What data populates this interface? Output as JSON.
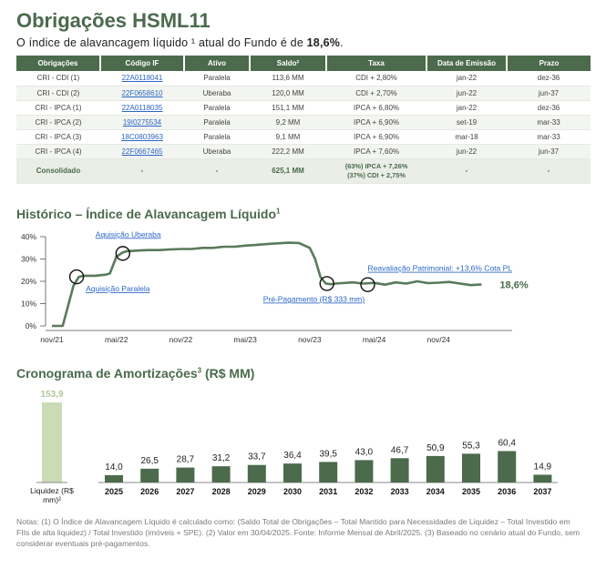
{
  "title": "Obrigações HSML11",
  "subtitle": {
    "prefix": "O índice de alavancagem líquido ¹ atual do Fundo é de ",
    "value": "18,6%",
    "suffix": "."
  },
  "bonds_table": {
    "headers": [
      "Obrigações",
      "Código IF",
      "Ativo",
      "Saldo²",
      "Taxa",
      "Data de Emissão",
      "Prazo"
    ],
    "rows": [
      [
        "CRI - CDI (1)",
        "22A0118041",
        "Paralela",
        "113,6 MM",
        "CDI + 2,80%",
        "jan-22",
        "dez-36"
      ],
      [
        "CRI - CDI (2)",
        "22F0658610",
        "Uberaba",
        "120,0 MM",
        "CDI + 2,70%",
        "jun-22",
        "jun-37"
      ],
      [
        "CRI - IPCA (1)",
        "22A0118035",
        "Paralela",
        "151,1 MM",
        "IPCA + 6,80%",
        "jan-22",
        "dez-36"
      ],
      [
        "CRI - IPCA (2)",
        "19I0275534",
        "Paralela",
        "9,2 MM",
        "IPCA + 6,90%",
        "set-19",
        "mar-33"
      ],
      [
        "CRI - IPCA (3)",
        "18C0803963",
        "Paralela",
        "9,1 MM",
        "IPCA + 6,90%",
        "mar-18",
        "mar-33"
      ],
      [
        "CRI - IPCA (4)",
        "22F0667465",
        "Uberaba",
        "222,2 MM",
        "IPCA + 7,60%",
        "jun-22",
        "jun-37"
      ]
    ],
    "consolidated": {
      "label": "Consolidado",
      "codigo": "-",
      "ativo": "-",
      "saldo": "625,1 MM",
      "taxa_line1": "(63%) IPCA + 7,26%",
      "taxa_line2": "(37%) CDI + 2,75%",
      "emissao": "-",
      "prazo": "-"
    }
  },
  "history_section": {
    "title": "Histórico – Índice de Alavancagem Líquido",
    "title_sup": "1"
  },
  "amort_section": {
    "title": "Cronograma de Amortizações",
    "title_sup": "3",
    "title_suffix": " (R$ MM)"
  },
  "notes": "Notas: (1) O Índice de Alavancagem Líquido é calculado como: (Saldo Total de Obrigações – Total Mantido para Necessidades de Liquidez – Total Investido em FIIs de alta liquidez) / Total Investido (imóveis + SPE). (2) Valor em 30/04/2025. Fonte: Informe Mensal de Abril/2025. (3) Baseado no cenário atual do Fundo, sem considerar eventuais pré-pagamentos.",
  "chart_data": [
    {
      "type": "line",
      "title": "Histórico – Índice de Alavancagem Líquido",
      "x_ticks": [
        "nov/21",
        "mai/22",
        "nov/22",
        "mai/23",
        "nov/23",
        "mai/24",
        "nov/24"
      ],
      "y_ticks": [
        "40%",
        "30%",
        "20%",
        "10%",
        "0%"
      ],
      "ylim": [
        0,
        40
      ],
      "x_range_months": [
        0,
        42
      ],
      "series": [
        {
          "x": [
            0,
            1,
            1.5,
            2,
            2.5,
            3,
            4,
            5,
            5.4,
            6,
            6.6,
            7,
            8,
            9,
            10,
            11,
            12,
            13,
            14,
            15,
            16,
            17,
            18,
            19,
            20,
            21,
            22,
            23,
            24,
            24.5,
            25,
            25.5,
            26,
            26.4,
            27,
            28,
            29,
            30,
            31,
            32,
            33,
            34,
            35,
            36,
            37,
            38,
            39,
            40
          ],
          "y": [
            0,
            0,
            9,
            18,
            22,
            22.5,
            22.5,
            23,
            23.5,
            31,
            33,
            33.5,
            33.8,
            34,
            34,
            34.3,
            34.5,
            34.5,
            35,
            35,
            35.5,
            35.5,
            36,
            36.3,
            36.7,
            37,
            37.3,
            37.2,
            35,
            30,
            22,
            19,
            18.7,
            19,
            19.2,
            19.5,
            19,
            19.3,
            18.5,
            19.5,
            19,
            20,
            19.2,
            19.4,
            19.7,
            19,
            18.3,
            18.6
          ]
        }
      ],
      "end_label": "18,6%",
      "annotations": [
        {
          "text": "Aquisição Paralela",
          "x": 2.3,
          "y": 22
        },
        {
          "text": "Aquisição Uberaba",
          "x": 6.6,
          "y": 32.5
        },
        {
          "text": "Pré-Pagamento (R$ 333 mm)",
          "x": 25.6,
          "y": 19
        },
        {
          "text": "Reavaliação Patrimonial: +13,6% Cota PL",
          "x": 29.4,
          "y": 18.5
        }
      ]
    },
    {
      "type": "bar",
      "title": "Cronograma de Amortizações (R$ MM)",
      "liquidity": {
        "label": "Liquidez (R$ mm)²",
        "value": 153.9,
        "value_label": "153,9"
      },
      "categories": [
        "2025",
        "2026",
        "2027",
        "2028",
        "2029",
        "2030",
        "2031",
        "2032",
        "2033",
        "2034",
        "2035",
        "2036",
        "2037"
      ],
      "values": [
        14.0,
        26.5,
        28.7,
        31.2,
        33.7,
        36.4,
        39.5,
        43.0,
        46.7,
        50.9,
        55.3,
        60.4,
        14.9
      ],
      "value_labels": [
        "14,0",
        "26,5",
        "28,7",
        "31,2",
        "33,7",
        "36,4",
        "39,5",
        "43,0",
        "46,7",
        "50,9",
        "55,3",
        "60,4",
        "14,9"
      ],
      "colors": {
        "amortization": "#4b6b4c",
        "liquidity": "#c9dcb5",
        "liquidity_label": "#b0c79a"
      }
    }
  ]
}
